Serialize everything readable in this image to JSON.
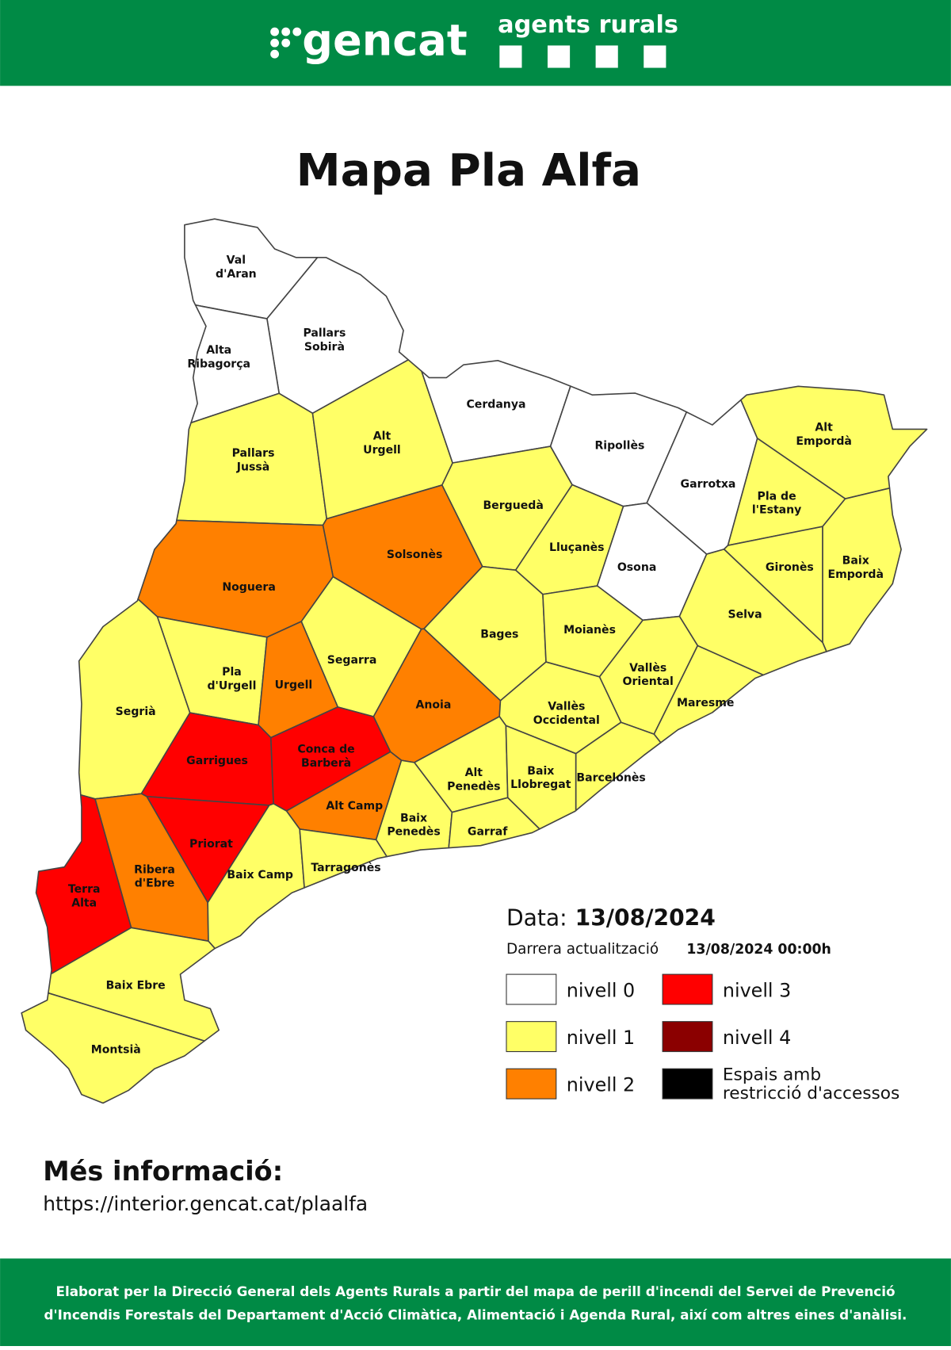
{
  "header": {
    "brand": "gencat",
    "unit": "agents rurals"
  },
  "title": "Mapa Pla Alfa",
  "date": {
    "label": "Data:",
    "value": "13/08/2024",
    "update_label": "Darrera actualització",
    "update_value": "13/08/2024 00:00h"
  },
  "legend": [
    {
      "lines": [
        "nivell 0"
      ],
      "color": "#ffffff"
    },
    {
      "lines": [
        "nivell 1"
      ],
      "color": "#ffff66"
    },
    {
      "lines": [
        "nivell 2"
      ],
      "color": "#ff8000"
    },
    {
      "lines": [
        "nivell 3"
      ],
      "color": "#ff0000"
    },
    {
      "lines": [
        "nivell 4"
      ],
      "color": "#8b0000"
    },
    {
      "lines": [
        "Espais amb",
        "restricció d'accessos"
      ],
      "color": "#000000"
    }
  ],
  "regions": [
    {
      "lines": [
        "Val",
        "d'Aran"
      ],
      "level": 0
    },
    {
      "lines": [
        "Pallars",
        "Sobirà"
      ],
      "level": 0
    },
    {
      "lines": [
        "Alta",
        "Ribagorça"
      ],
      "level": 0
    },
    {
      "lines": [
        "Pallars",
        "Jussà"
      ],
      "level": 1
    },
    {
      "lines": [
        "Alt",
        "Urgell"
      ],
      "level": 1
    },
    {
      "lines": [
        "Cerdanya"
      ],
      "level": 0
    },
    {
      "lines": [
        "Ripollès"
      ],
      "level": 0
    },
    {
      "lines": [
        "Garrotxa"
      ],
      "level": 0
    },
    {
      "lines": [
        "Alt",
        "Empordà"
      ],
      "level": 1
    },
    {
      "lines": [
        "Pla de",
        "l'Estany"
      ],
      "level": 1
    },
    {
      "lines": [
        "Gironès"
      ],
      "level": 1
    },
    {
      "lines": [
        "Baix",
        "Empordà"
      ],
      "level": 1
    },
    {
      "lines": [
        "Berguedà"
      ],
      "level": 1
    },
    {
      "lines": [
        "Solsonès"
      ],
      "level": 2
    },
    {
      "lines": [
        "Lluçanès"
      ],
      "level": 1
    },
    {
      "lines": [
        "Osona"
      ],
      "level": 0
    },
    {
      "lines": [
        "Noguera"
      ],
      "level": 2
    },
    {
      "lines": [
        "Selva"
      ],
      "level": 1
    },
    {
      "lines": [
        "Bages"
      ],
      "level": 1
    },
    {
      "lines": [
        "Moianès"
      ],
      "level": 1
    },
    {
      "lines": [
        "Segarra"
      ],
      "level": 1
    },
    {
      "lines": [
        "Pla",
        "d'Urgell"
      ],
      "level": 1
    },
    {
      "lines": [
        "Urgell"
      ],
      "level": 2
    },
    {
      "lines": [
        "Segrià"
      ],
      "level": 1
    },
    {
      "lines": [
        "Anoia"
      ],
      "level": 2
    },
    {
      "lines": [
        "Vallès",
        "Oriental"
      ],
      "level": 1
    },
    {
      "lines": [
        "Maresme"
      ],
      "level": 1
    },
    {
      "lines": [
        "Vallès",
        "Occidental"
      ],
      "level": 1
    },
    {
      "lines": [
        "Garrigues"
      ],
      "level": 3
    },
    {
      "lines": [
        "Conca de",
        "Barberà"
      ],
      "level": 3
    },
    {
      "lines": [
        "Alt",
        "Penedès"
      ],
      "level": 1
    },
    {
      "lines": [
        "Baix",
        "Llobregat"
      ],
      "level": 1
    },
    {
      "lines": [
        "Barcelonès"
      ],
      "level": 1
    },
    {
      "lines": [
        "Alt Camp"
      ],
      "level": 2
    },
    {
      "lines": [
        "Baix",
        "Penedès"
      ],
      "level": 1
    },
    {
      "lines": [
        "Garraf"
      ],
      "level": 1
    },
    {
      "lines": [
        "Priorat"
      ],
      "level": 3
    },
    {
      "lines": [
        "Ribera",
        "d'Ebre"
      ],
      "level": 2
    },
    {
      "lines": [
        "Baix Camp"
      ],
      "level": 1
    },
    {
      "lines": [
        "Tarragonès"
      ],
      "level": 1
    },
    {
      "lines": [
        "Terra",
        "Alta"
      ],
      "level": 3
    },
    {
      "lines": [
        "Baix Ebre"
      ],
      "level": 1
    },
    {
      "lines": [
        "Montsià"
      ],
      "level": 1
    }
  ],
  "info": {
    "heading": "Més informació:",
    "url": "https://interior.gencat.cat/plaalfa"
  },
  "footer": [
    "Elaborat per la Direcció General dels Agents Rurals a partir del mapa de perill d'incendi del Servei de Prevenció",
    "d'Incendis Forestals del Departament d'Acció Climàtica, Alimentació i Agenda Rural, així com altres eines d'anàlisi."
  ]
}
